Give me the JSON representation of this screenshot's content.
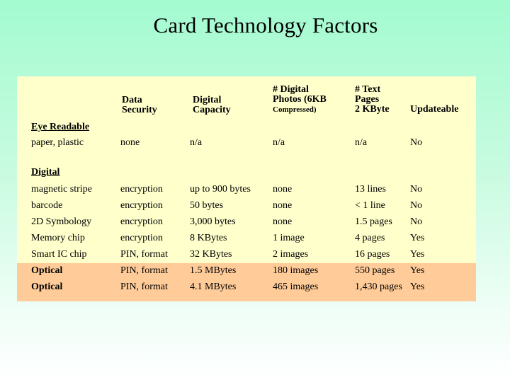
{
  "title": "Card Technology Factors",
  "headers": {
    "security": [
      "Data",
      "Security"
    ],
    "capacity": [
      "Digital",
      "Capacity"
    ],
    "photos": [
      "# Digital",
      "Photos (6KB",
      "Compressed)"
    ],
    "text_pages": [
      "# Text",
      "Pages",
      "2 KByte"
    ],
    "updateable": "Updateable"
  },
  "sections": {
    "eye_readable": "Eye Readable",
    "digital": "Digital"
  },
  "rows": [
    {
      "label": "paper, plastic",
      "security": "none",
      "capacity": "n/a",
      "photos": "n/a",
      "pages": "n/a",
      "updateable": "No"
    },
    {
      "label": "magnetic stripe",
      "security": "encryption",
      "capacity": "up to 900 bytes",
      "photos": "none",
      "pages": "13 lines",
      "updateable": "No"
    },
    {
      "label": "barcode",
      "security": "encryption",
      "capacity": "50 bytes",
      "photos": "none",
      "pages": "< 1 line",
      "updateable": "No"
    },
    {
      "label": "2D Symbology",
      "security": "encryption",
      "capacity": "3,000 bytes",
      "photos": "none",
      "pages": "1.5 pages",
      "updateable": "No"
    },
    {
      "label": "Memory chip",
      "security": "encryption",
      "capacity": "8 KBytes",
      "photos": "1 image",
      "pages": "4 pages",
      "updateable": "Yes"
    },
    {
      "label": "Smart IC chip",
      "security": "PIN, format",
      "capacity": "32 KBytes",
      "photos": "2 images",
      "pages": "16 pages",
      "updateable": "Yes"
    },
    {
      "label": "Optical",
      "security": "PIN, format",
      "capacity": "1.5 MBytes",
      "photos": "180 images",
      "pages": "550 pages",
      "updateable": "Yes"
    },
    {
      "label": "Optical",
      "security": "PIN, format",
      "capacity": "4.1 MBytes",
      "photos": "465 images",
      "pages": "1,430 pages",
      "updateable": "Yes"
    }
  ],
  "colors": {
    "background_top": "#a3fbd0",
    "panel": "#ffffcc",
    "optical_highlight": "#ffcc99"
  }
}
